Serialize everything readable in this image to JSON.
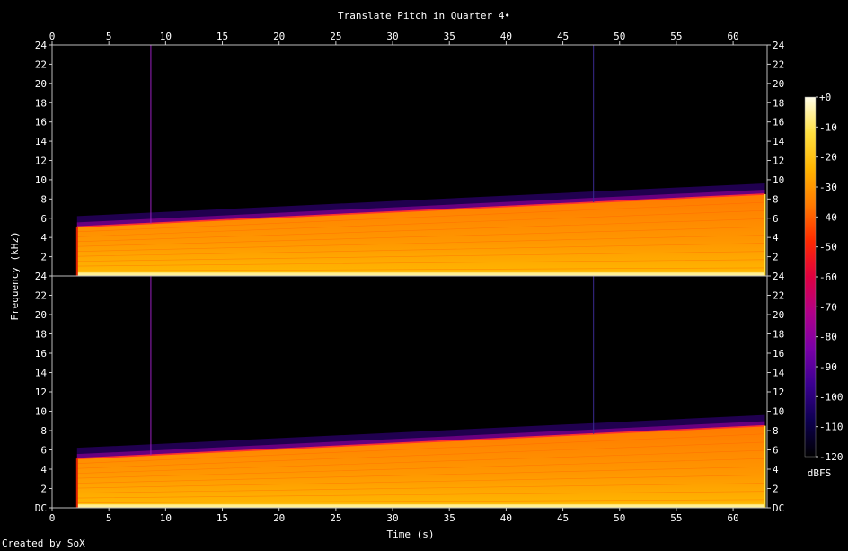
{
  "chart_data": {
    "type": "heatmap",
    "title": "Translate Pitch in Quarter 4•",
    "xlabel": "Time (s)",
    "ylabel": "Frequency (kHz)",
    "xlim": [
      0,
      63
    ],
    "x_ticks": [
      0,
      5,
      10,
      15,
      20,
      25,
      30,
      35,
      40,
      45,
      50,
      55,
      60
    ],
    "ylim": [
      0,
      24
    ],
    "y_ticks": [
      "DC",
      "2",
      "4",
      "6",
      "8",
      "10",
      "12",
      "14",
      "16",
      "18",
      "20",
      "22",
      "24"
    ],
    "channels": 2,
    "colorbar": {
      "label": "dBFS",
      "range": [
        -120,
        0
      ],
      "ticks": [
        "+0",
        "-10",
        "-20",
        "-30",
        "-40",
        "-50",
        "-60",
        "-70",
        "-80",
        "-90",
        "-100",
        "-110",
        "-120"
      ],
      "colors": [
        "#000000",
        "#0d0050",
        "#3a0090",
        "#7a00a8",
        "#b0008a",
        "#e00040",
        "#ff2a00",
        "#ff7a00",
        "#ffb400",
        "#ffe040",
        "#fffde8"
      ]
    },
    "signal": {
      "start_time": 2.2,
      "end_time": 62.8,
      "start_top_khz": 5.1,
      "end_top_khz": 8.5,
      "vertical_marks_s": [
        8.7,
        47.7
      ]
    }
  },
  "footer": {
    "credit": "Created by SoX"
  }
}
